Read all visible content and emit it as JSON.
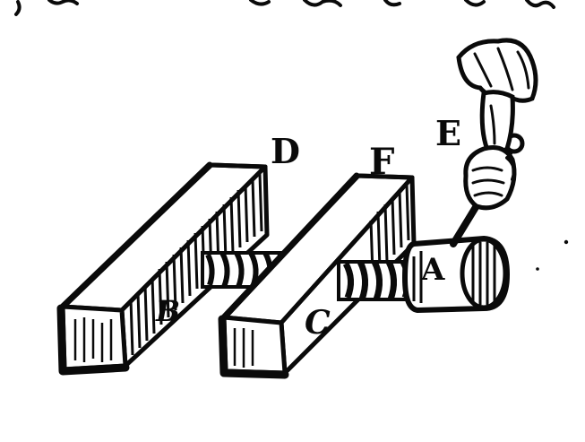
{
  "figure": {
    "labels": {
      "a": "A",
      "b": "B",
      "c": "C",
      "d": "D",
      "e": "E",
      "f": "F"
    }
  }
}
